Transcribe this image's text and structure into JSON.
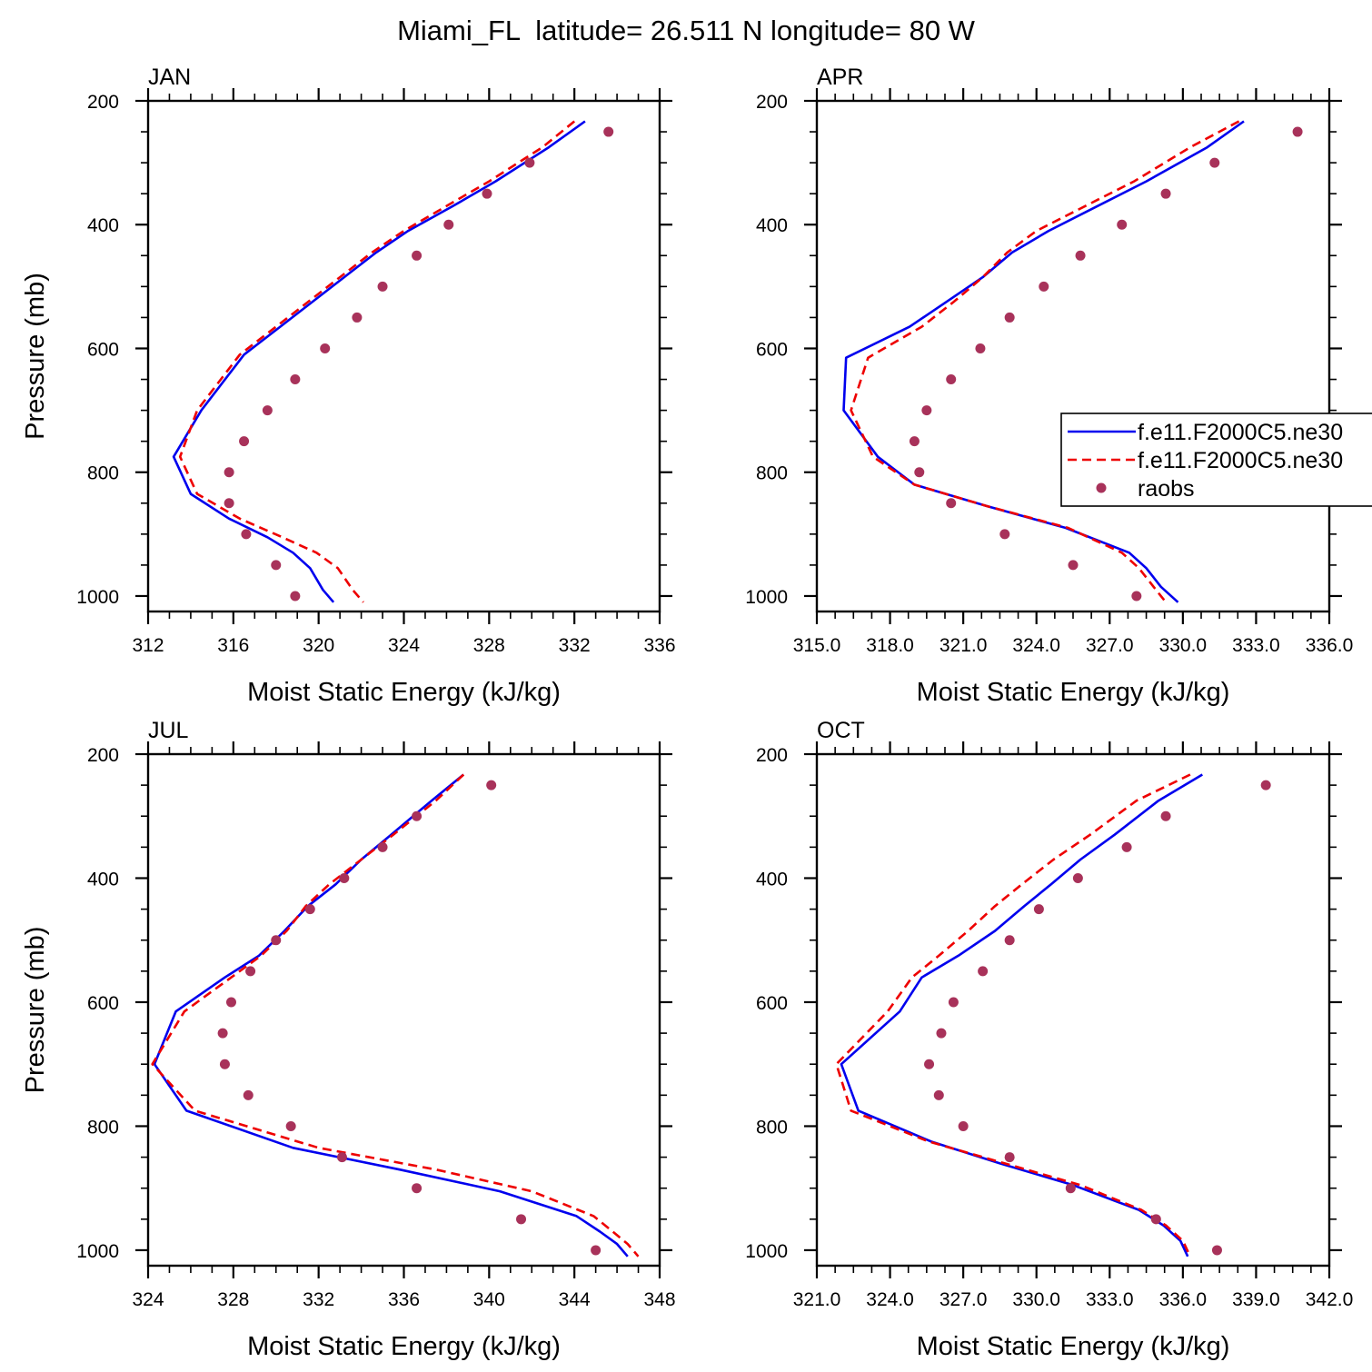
{
  "figure_title": "Miami_FL  latitude= 26.511 N longitude= 80 W",
  "colors": {
    "model_solid": "#0000ee",
    "model_dashed": "#ee0000",
    "raobs": "#a8325a"
  },
  "legend": {
    "placement": "APR panel, right side",
    "entries": [
      {
        "label": "f.e11.F2000C5.ne30",
        "style": "solid",
        "color": "#0000ee"
      },
      {
        "label": "f.e11.F2000C5.ne30",
        "style": "dashed",
        "color": "#ee0000"
      },
      {
        "label": "raobs",
        "style": "marker",
        "color": "#a8325a"
      }
    ]
  },
  "chart_data": [
    {
      "type": "line",
      "title": "JAN",
      "xlabel": "Moist Static Energy (kJ/kg)",
      "ylabel": "Pressure (mb)",
      "xlim": [
        312,
        336
      ],
      "ylim": [
        1025,
        200
      ],
      "y_reversed": true,
      "xticks": [
        "312",
        "316",
        "320",
        "324",
        "328",
        "332",
        "336"
      ],
      "xtick_values": [
        312,
        316,
        320,
        324,
        328,
        332,
        336
      ],
      "yticks": [
        "200",
        "400",
        "600",
        "800",
        "1000"
      ],
      "ytick_values": [
        200,
        400,
        600,
        800,
        1000
      ],
      "series": [
        {
          "style": "solid",
          "color": "#0000ee",
          "x": [
            332.5,
            330.8,
            328.3,
            326.3,
            324.2,
            322.7,
            321.2,
            319.7,
            318.2,
            316.5,
            314.5,
            313.2,
            314.0,
            315.8,
            317.6,
            318.8,
            319.6,
            320.2,
            320.7
          ],
          "y": [
            233,
            275,
            330,
            370,
            410,
            445,
            485,
            525,
            565,
            610,
            700,
            775,
            835,
            875,
            905,
            930,
            955,
            990,
            1010
          ]
        },
        {
          "style": "dashed",
          "color": "#ee0000",
          "x": [
            332.0,
            330.5,
            328.0,
            326.0,
            324.0,
            322.5,
            321.0,
            319.5,
            318.0,
            316.3,
            314.3,
            313.5,
            314.3,
            316.3,
            318.3,
            319.9,
            320.9,
            321.6,
            322.1
          ],
          "y": [
            233,
            275,
            330,
            370,
            410,
            445,
            485,
            525,
            565,
            610,
            700,
            775,
            835,
            875,
            905,
            930,
            955,
            990,
            1010
          ]
        },
        {
          "style": "marker",
          "color": "#a8325a",
          "x": [
            333.6,
            329.9,
            327.9,
            326.1,
            324.6,
            323.0,
            321.8,
            320.3,
            318.9,
            317.6,
            316.5,
            315.8,
            315.8,
            316.6,
            318.0,
            318.9
          ],
          "y": [
            250,
            300,
            350,
            400,
            450,
            500,
            550,
            600,
            650,
            700,
            750,
            800,
            850,
            900,
            950,
            1000
          ]
        }
      ]
    },
    {
      "type": "line",
      "title": "APR",
      "xlabel": "Moist Static Energy (kJ/kg)",
      "ylabel": "",
      "xlim": [
        315,
        336
      ],
      "ylim": [
        1025,
        200
      ],
      "y_reversed": true,
      "xticks": [
        "315.0",
        "318.0",
        "321.0",
        "324.0",
        "327.0",
        "330.0",
        "333.0",
        "336.0"
      ],
      "xtick_values": [
        315,
        318,
        321,
        324,
        327,
        330,
        333,
        336
      ],
      "yticks": [
        "200",
        "400",
        "600",
        "800",
        "1000"
      ],
      "ytick_values": [
        200,
        400,
        600,
        800,
        1000
      ],
      "series": [
        {
          "style": "solid",
          "color": "#0000ee",
          "x": [
            332.5,
            331.0,
            328.5,
            326.5,
            324.5,
            323.0,
            321.8,
            320.3,
            318.8,
            316.2,
            316.1,
            317.5,
            319.0,
            322.0,
            325.2,
            327.8,
            328.5,
            329.1,
            329.8
          ],
          "y": [
            233,
            275,
            330,
            370,
            410,
            445,
            485,
            525,
            565,
            615,
            700,
            775,
            820,
            855,
            890,
            930,
            955,
            985,
            1010
          ]
        },
        {
          "style": "dashed",
          "color": "#ee0000",
          "x": [
            332.3,
            330.3,
            328.0,
            326.0,
            324.0,
            322.8,
            321.8,
            320.6,
            319.3,
            317.1,
            316.4,
            317.3,
            319.0,
            322.0,
            325.3,
            327.5,
            328.2,
            328.8,
            329.3
          ],
          "y": [
            233,
            275,
            330,
            370,
            410,
            445,
            485,
            525,
            565,
            615,
            700,
            775,
            820,
            855,
            890,
            930,
            955,
            985,
            1010
          ]
        },
        {
          "style": "marker",
          "color": "#a8325a",
          "x": [
            334.7,
            331.3,
            329.3,
            327.5,
            325.8,
            324.3,
            322.9,
            321.7,
            320.5,
            319.5,
            319.0,
            319.2,
            320.5,
            322.7,
            325.5,
            328.1
          ],
          "y": [
            250,
            300,
            350,
            400,
            450,
            500,
            550,
            600,
            650,
            700,
            750,
            800,
            850,
            900,
            950,
            1000
          ]
        }
      ]
    },
    {
      "type": "line",
      "title": "JUL",
      "xlabel": "Moist Static Energy (kJ/kg)",
      "ylabel": "Pressure (mb)",
      "xlim": [
        324,
        348
      ],
      "ylim": [
        1025,
        200
      ],
      "y_reversed": true,
      "xticks": [
        "324",
        "328",
        "332",
        "336",
        "340",
        "344",
        "348"
      ],
      "xtick_values": [
        324,
        328,
        332,
        336,
        340,
        344,
        348
      ],
      "yticks": [
        "200",
        "400",
        "600",
        "800",
        "1000"
      ],
      "ytick_values": [
        200,
        400,
        600,
        800,
        1000
      ],
      "series": [
        {
          "style": "solid",
          "color": "#0000ee",
          "x": [
            338.8,
            337.3,
            335.4,
            334.0,
            332.8,
            331.5,
            330.4,
            329.2,
            327.6,
            325.3,
            324.3,
            325.8,
            330.8,
            335.8,
            340.5,
            344.1,
            345.2,
            346.0,
            346.5
          ],
          "y": [
            233,
            275,
            330,
            370,
            410,
            445,
            485,
            525,
            560,
            615,
            700,
            775,
            835,
            870,
            905,
            945,
            970,
            990,
            1010
          ]
        },
        {
          "style": "dashed",
          "color": "#ee0000",
          "x": [
            338.8,
            337.5,
            335.5,
            334.0,
            332.5,
            331.4,
            330.5,
            329.3,
            327.9,
            325.7,
            324.2,
            326.2,
            332.0,
            337.5,
            342.0,
            344.9,
            345.8,
            346.5,
            347.0
          ],
          "y": [
            233,
            275,
            330,
            370,
            410,
            445,
            485,
            525,
            560,
            615,
            700,
            775,
            835,
            870,
            905,
            945,
            970,
            990,
            1010
          ]
        },
        {
          "style": "marker",
          "color": "#a8325a",
          "x": [
            340.1,
            336.6,
            335.0,
            333.2,
            331.6,
            330.0,
            328.8,
            327.9,
            327.5,
            327.6,
            328.7,
            330.7,
            333.1,
            336.6,
            341.5,
            345.0
          ],
          "y": [
            250,
            300,
            350,
            400,
            450,
            500,
            550,
            600,
            650,
            700,
            750,
            800,
            850,
            900,
            950,
            1000
          ]
        }
      ]
    },
    {
      "type": "line",
      "title": "OCT",
      "xlabel": "Moist Static Energy (kJ/kg)",
      "ylabel": "",
      "xlim": [
        321,
        342
      ],
      "ylim": [
        1025,
        200
      ],
      "y_reversed": true,
      "xticks": [
        "321.0",
        "324.0",
        "327.0",
        "330.0",
        "333.0",
        "336.0",
        "339.0",
        "342.0"
      ],
      "xtick_values": [
        321,
        324,
        327,
        330,
        333,
        336,
        339,
        342
      ],
      "yticks": [
        "200",
        "400",
        "600",
        "800",
        "1000"
      ],
      "ytick_values": [
        200,
        400,
        600,
        800,
        1000
      ],
      "series": [
        {
          "style": "solid",
          "color": "#0000ee",
          "x": [
            336.8,
            335.0,
            333.2,
            331.8,
            330.6,
            329.5,
            328.3,
            326.8,
            325.3,
            324.4,
            322.0,
            322.7,
            325.7,
            328.5,
            331.5,
            334.2,
            335.2,
            335.9,
            336.2
          ],
          "y": [
            233,
            275,
            330,
            370,
            410,
            445,
            485,
            525,
            560,
            615,
            700,
            775,
            825,
            860,
            895,
            935,
            960,
            985,
            1010
          ]
        },
        {
          "style": "dashed",
          "color": "#ee0000",
          "x": [
            336.3,
            334.1,
            332.2,
            330.7,
            329.4,
            328.3,
            327.2,
            326.0,
            324.9,
            323.9,
            321.8,
            322.4,
            325.6,
            328.7,
            331.8,
            334.3,
            335.3,
            336.0,
            336.3
          ],
          "y": [
            233,
            275,
            330,
            370,
            410,
            445,
            485,
            525,
            560,
            615,
            700,
            775,
            825,
            860,
            895,
            935,
            960,
            985,
            1010
          ]
        },
        {
          "style": "marker",
          "color": "#a8325a",
          "x": [
            339.4,
            335.3,
            333.7,
            331.7,
            330.1,
            328.9,
            327.8,
            326.6,
            326.1,
            325.6,
            326.0,
            327.0,
            328.9,
            331.4,
            334.9,
            337.4
          ],
          "y": [
            250,
            300,
            350,
            400,
            450,
            500,
            550,
            600,
            650,
            700,
            750,
            800,
            850,
            900,
            950,
            1000
          ]
        }
      ]
    }
  ]
}
